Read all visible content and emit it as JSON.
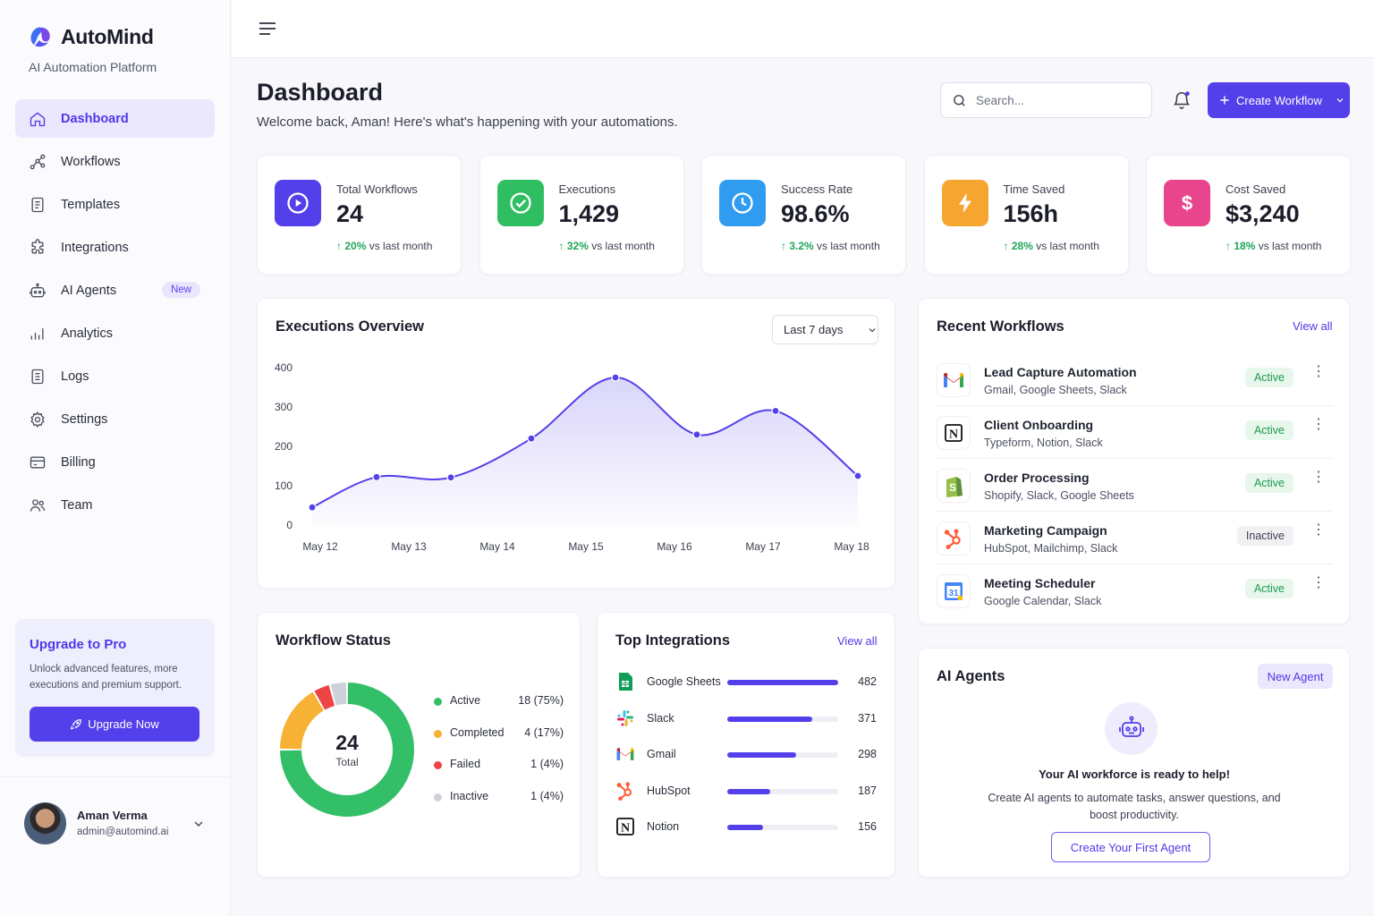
{
  "brand": {
    "name": "AutoMind",
    "subtitle": "AI Automation Platform"
  },
  "nav": [
    {
      "label": "Dashboard",
      "icon": "home-icon",
      "active": true
    },
    {
      "label": "Workflows",
      "icon": "workflow-icon"
    },
    {
      "label": "Templates",
      "icon": "template-icon"
    },
    {
      "label": "Integrations",
      "icon": "puzzle-icon"
    },
    {
      "label": "AI Agents",
      "icon": "robot-icon",
      "badge": "New"
    },
    {
      "label": "Analytics",
      "icon": "bar-chart-icon"
    },
    {
      "label": "Logs",
      "icon": "document-icon"
    },
    {
      "label": "Settings",
      "icon": "gear-icon"
    },
    {
      "label": "Billing",
      "icon": "credit-card-icon"
    },
    {
      "label": "Team",
      "icon": "users-icon"
    }
  ],
  "upgrade": {
    "title": "Upgrade to Pro",
    "text": "Unlock advanced features, more executions and premium support.",
    "button": "Upgrade Now"
  },
  "user": {
    "name": "Aman Verma",
    "email": "admin@automind.ai"
  },
  "header": {
    "title": "Dashboard",
    "subtitle": "Welcome back, Aman! Here's what's happening with your automations.",
    "search_placeholder": "Search...",
    "create_button": "Create Workflow"
  },
  "stats": [
    {
      "label": "Total Workflows",
      "value": "24",
      "delta": "20%",
      "delta_text": "vs last month",
      "color": "#5440ea",
      "icon": "play-icon"
    },
    {
      "label": "Executions",
      "value": "1,429",
      "delta": "32%",
      "delta_text": "vs last month",
      "color": "#2fbf62",
      "icon": "check-circle-icon"
    },
    {
      "label": "Success Rate",
      "value": "98.6%",
      "delta": "3.2%",
      "delta_text": "vs last month",
      "color": "#2f9cf0",
      "icon": "clock-icon"
    },
    {
      "label": "Time Saved",
      "value": "156h",
      "delta": "28%",
      "delta_text": "vs last month",
      "color": "#f7a531",
      "icon": "lightning-icon"
    },
    {
      "label": "Cost Saved",
      "value": "$3,240",
      "delta": "18%",
      "delta_text": "vs last month",
      "color": "#e9458c",
      "icon": "dollar-icon"
    }
  ],
  "executions": {
    "title": "Executions Overview",
    "range": "Last 7 days"
  },
  "chart_data": {
    "type": "area",
    "categories": [
      "May 12",
      "May 13",
      "May 14",
      "May 15",
      "May 16",
      "May 17",
      "May 18"
    ],
    "x_positions_note": "",
    "points": [
      {
        "x": "May 12",
        "y": 45
      },
      {
        "x": "May 12-13",
        "y": 122
      },
      {
        "x": "May 13-14",
        "y": 121
      },
      {
        "x": "May 14",
        "y": 220
      },
      {
        "x": "May 15",
        "y": 375
      },
      {
        "x": "May 16",
        "y": 230
      },
      {
        "x": "May 17",
        "y": 290
      },
      {
        "x": "May 18",
        "y": 125
      }
    ],
    "y_ticks": [
      0,
      100,
      200,
      300,
      400
    ],
    "ylim": [
      0,
      400
    ],
    "color": "#5440ea"
  },
  "recent": {
    "title": "Recent Workflows",
    "view_all": "View all",
    "items": [
      {
        "name": "Lead Capture Automation",
        "apps": "Gmail, Google Sheets, Slack",
        "status": "Active",
        "logo": "gmail-icon"
      },
      {
        "name": "Client Onboarding",
        "apps": "Typeform, Notion, Slack",
        "status": "Active",
        "logo": "notion-icon"
      },
      {
        "name": "Order Processing",
        "apps": "Shopify, Slack, Google Sheets",
        "status": "Active",
        "logo": "shopify-icon"
      },
      {
        "name": "Marketing Campaign",
        "apps": "HubSpot, Mailchimp, Slack",
        "status": "Inactive",
        "logo": "hubspot-icon"
      },
      {
        "name": "Meeting Scheduler",
        "apps": "Google Calendar, Slack",
        "status": "Active",
        "logo": "google-calendar-icon"
      }
    ]
  },
  "status": {
    "title": "Workflow Status",
    "total": "24",
    "total_label": "Total",
    "items": [
      {
        "label": "Active",
        "value": "18 (75%)",
        "count": 18,
        "color": "#33bf68"
      },
      {
        "label": "Completed",
        "value": "4 (17%)",
        "count": 4,
        "color": "#f7b135"
      },
      {
        "label": "Failed",
        "value": "1 (4%)",
        "count": 1,
        "color": "#ee4444"
      },
      {
        "label": "Inactive",
        "value": "1 (4%)",
        "count": 1,
        "color": "#cfd1da"
      }
    ]
  },
  "integrations": {
    "title": "Top Integrations",
    "view_all": "View all",
    "items": [
      {
        "name": "Google Sheets",
        "value": 482,
        "logo": "google-sheets-icon"
      },
      {
        "name": "Slack",
        "value": 371,
        "logo": "slack-icon"
      },
      {
        "name": "Gmail",
        "value": 298,
        "logo": "gmail-icon"
      },
      {
        "name": "HubSpot",
        "value": 187,
        "logo": "hubspot-icon"
      },
      {
        "name": "Notion",
        "value": 156,
        "logo": "notion-icon"
      }
    ]
  },
  "agents": {
    "title": "AI Agents",
    "new_button": "New Agent",
    "headline": "Your AI workforce is ready to help!",
    "description": "Create AI agents to automate tasks, answer questions, and boost productivity.",
    "cta": "Create Your First Agent"
  }
}
